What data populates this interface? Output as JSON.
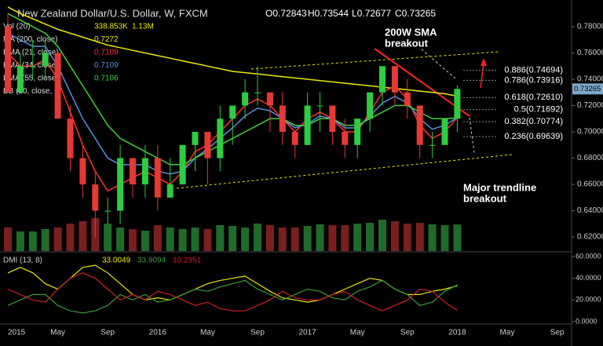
{
  "header": {
    "symbol": "New Zealand Dollar/U.S. Dollar, W, FXCM",
    "open": 0.72843,
    "high": 0.73544,
    "low": 0.72677,
    "close": 0.73265
  },
  "indicators": [
    {
      "name": "Vol (20)",
      "readings": [
        "338.853K",
        "1.13M"
      ],
      "color": "#e8e800"
    },
    {
      "name": "MA (200, close)",
      "readings": [
        "0.7272"
      ],
      "color": "#e8e800"
    },
    {
      "name": "EMA (21, close)",
      "readings": [
        "0.7109"
      ],
      "color": "#ff3030"
    },
    {
      "name": "EMA (34, close)",
      "readings": [
        "0.7109"
      ],
      "color": "#5a8fe0"
    },
    {
      "name": "EMA (55, close)",
      "readings": [
        "0.7106"
      ],
      "color": "#3ecf3e"
    },
    {
      "name": "BB (20, close, 2)",
      "readings": [],
      "color": "#cccccc"
    }
  ],
  "chart_data": {
    "type": "candlestick",
    "categories": [
      "2015",
      null,
      null,
      null,
      "May",
      null,
      null,
      null,
      "Sep",
      null,
      null,
      null,
      "2016",
      null,
      null,
      null,
      "May",
      null,
      null,
      null,
      "Sep",
      null,
      null,
      null,
      "2017",
      null,
      null,
      null,
      "May",
      null,
      null,
      null,
      "Sep",
      null,
      null,
      null,
      "2018",
      null,
      null,
      null,
      "May",
      null,
      null,
      null,
      "Sep"
    ],
    "open": [
      0.78,
      0.73,
      0.75,
      0.75,
      0.76,
      0.71,
      0.68,
      0.66,
      0.64,
      0.64,
      0.68,
      0.66,
      0.68,
      0.65,
      0.66,
      0.69,
      0.7,
      0.68,
      0.71,
      0.72,
      0.73,
      0.73,
      0.72,
      0.7,
      0.69,
      0.72,
      0.72,
      0.7,
      0.69,
      0.71,
      0.73,
      0.75,
      0.73,
      0.72,
      0.69,
      0.69,
      0.71,
      null,
      null,
      null,
      null,
      null,
      null,
      null,
      null
    ],
    "high": [
      0.79,
      0.76,
      0.77,
      0.77,
      0.76,
      0.72,
      0.69,
      0.67,
      0.65,
      0.69,
      0.68,
      0.69,
      0.69,
      0.68,
      0.69,
      0.7,
      0.7,
      0.72,
      0.72,
      0.74,
      0.75,
      0.73,
      0.73,
      0.7,
      0.73,
      0.73,
      0.72,
      0.71,
      0.71,
      0.73,
      0.75,
      0.75,
      0.74,
      0.72,
      0.7,
      0.71,
      0.73544,
      null,
      null,
      null,
      null,
      null,
      null,
      null,
      null
    ],
    "low": [
      0.73,
      0.73,
      0.74,
      0.74,
      0.71,
      0.67,
      0.65,
      0.62,
      0.63,
      0.63,
      0.65,
      0.65,
      0.64,
      0.65,
      0.66,
      0.67,
      0.66,
      0.67,
      0.69,
      0.71,
      0.72,
      0.7,
      0.69,
      0.68,
      0.69,
      0.7,
      0.69,
      0.68,
      0.68,
      0.7,
      0.72,
      0.72,
      0.71,
      0.68,
      0.68,
      0.69,
      0.7,
      null,
      null,
      null,
      null,
      null,
      null,
      null,
      null
    ],
    "close": [
      0.73,
      0.75,
      0.75,
      0.76,
      0.71,
      0.68,
      0.66,
      0.64,
      0.64,
      0.68,
      0.66,
      0.68,
      0.65,
      0.66,
      0.69,
      0.7,
      0.68,
      0.71,
      0.72,
      0.73,
      0.73,
      0.72,
      0.7,
      0.69,
      0.72,
      0.72,
      0.7,
      0.69,
      0.71,
      0.73,
      0.75,
      0.73,
      0.72,
      0.69,
      0.69,
      0.71,
      0.73265,
      null,
      null,
      null,
      null,
      null,
      null,
      null,
      null
    ],
    "up_color": "#2ecc40",
    "down_color": "#e53935",
    "ylim": [
      0.6093,
      0.8003
    ],
    "yticks": [
      {
        "value": 0.62,
        "label": "0.62000"
      },
      {
        "value": 0.64,
        "label": "0.64000"
      },
      {
        "value": 0.66,
        "label": "0.66000"
      },
      {
        "value": 0.68,
        "label": "0.68000"
      },
      {
        "value": 0.7,
        "label": "0.70000"
      },
      {
        "value": 0.72,
        "label": "0.72000"
      },
      {
        "value": 0.74,
        "label": "0.74000"
      },
      {
        "value": 0.76,
        "label": "0.76000"
      },
      {
        "value": 0.78,
        "label": "0.78000"
      }
    ],
    "last_price": {
      "value": 0.73265,
      "label": "0.73265"
    },
    "series": [
      {
        "name": "MA (200, close)",
        "color": "#e8e800",
        "values": [
          0.795,
          0.79,
          0.786,
          0.782,
          0.778,
          0.775,
          0.772,
          0.769,
          0.766,
          0.764,
          0.762,
          0.76,
          0.758,
          0.756,
          0.754,
          0.752,
          0.75,
          0.748,
          0.746,
          0.745,
          0.744,
          0.743,
          0.742,
          0.741,
          0.74,
          0.739,
          0.738,
          0.737,
          0.736,
          0.735,
          0.734,
          0.733,
          0.732,
          0.731,
          0.73,
          0.729,
          0.7272,
          null,
          null,
          null,
          null,
          null,
          null,
          null,
          null
        ]
      },
      {
        "name": "EMA (21, close)",
        "color": "#ff3030",
        "values": [
          0.76,
          0.75,
          0.75,
          0.755,
          0.74,
          0.715,
          0.69,
          0.67,
          0.655,
          0.66,
          0.665,
          0.67,
          0.665,
          0.66,
          0.67,
          0.685,
          0.69,
          0.7,
          0.71,
          0.72,
          0.725,
          0.72,
          0.71,
          0.7,
          0.71,
          0.715,
          0.71,
          0.7,
          0.7,
          0.715,
          0.73,
          0.735,
          0.725,
          0.705,
          0.695,
          0.7,
          0.7109,
          null,
          null,
          null,
          null,
          null,
          null,
          null,
          null
        ]
      },
      {
        "name": "EMA (34, close)",
        "color": "#5a8fe0",
        "values": [
          0.775,
          0.77,
          0.765,
          0.765,
          0.75,
          0.73,
          0.71,
          0.695,
          0.68,
          0.675,
          0.675,
          0.675,
          0.67,
          0.668,
          0.67,
          0.68,
          0.687,
          0.695,
          0.703,
          0.712,
          0.718,
          0.716,
          0.71,
          0.703,
          0.706,
          0.712,
          0.71,
          0.703,
          0.703,
          0.712,
          0.722,
          0.727,
          0.722,
          0.71,
          0.702,
          0.705,
          0.7109,
          null,
          null,
          null,
          null,
          null,
          null,
          null,
          null
        ]
      },
      {
        "name": "EMA (55, close)",
        "color": "#3ecf3e",
        "values": [
          0.79,
          0.785,
          0.78,
          0.775,
          0.765,
          0.75,
          0.735,
          0.72,
          0.705,
          0.695,
          0.69,
          0.685,
          0.68,
          0.675,
          0.675,
          0.68,
          0.685,
          0.69,
          0.695,
          0.7,
          0.705,
          0.71,
          0.71,
          0.705,
          0.705,
          0.71,
          0.71,
          0.705,
          0.705,
          0.71,
          0.715,
          0.72,
          0.72,
          0.715,
          0.71,
          0.71,
          0.7106,
          null,
          null,
          null,
          null,
          null,
          null,
          null,
          null
        ]
      }
    ],
    "volume": {
      "values": [
        300,
        250,
        250,
        280,
        300,
        350,
        380,
        420,
        350,
        300,
        280,
        260,
        330,
        300,
        280,
        300,
        280,
        330,
        320,
        300,
        350,
        330,
        300,
        300,
        320,
        340,
        330,
        330,
        350,
        360,
        400,
        380,
        350,
        360,
        340,
        330,
        338.853,
        null,
        null,
        null,
        null,
        null,
        null,
        null,
        null
      ],
      "ylim": [
        0,
        700
      ]
    },
    "fib": [
      {
        "level": 0.74694,
        "label": "0.886(0.74694)"
      },
      {
        "level": 0.73916,
        "label": "0.786(0.73916)"
      },
      {
        "level": 0.7261,
        "label": "0.618(0.72610)"
      },
      {
        "level": 0.71692,
        "label": "0.5(0.71692)"
      },
      {
        "level": 0.70774,
        "label": "0.382(0.70774)"
      },
      {
        "level": 0.69639,
        "label": "0.236(0.69639)"
      }
    ],
    "annotations": [
      {
        "lines": [
          "200W SMA",
          "breakout"
        ]
      },
      {
        "lines": [
          "Major trendline",
          "breakout"
        ]
      }
    ],
    "dmi": {
      "title": "DMI (13, 8)",
      "readings": [
        "33.0049",
        "33.9094",
        "10.2951"
      ],
      "ylim": [
        0,
        60
      ],
      "yticks": [
        {
          "value": 0,
          "label": "0.0000"
        },
        {
          "value": 20,
          "label": "20.0000"
        },
        {
          "value": 40,
          "label": "40.0000"
        },
        {
          "value": 60,
          "label": "60.0000"
        }
      ],
      "series": [
        {
          "name": "ADX",
          "color": "#e8e800",
          "values": [
            45,
            50,
            45,
            35,
            30,
            40,
            50,
            52,
            45,
            35,
            25,
            20,
            22,
            20,
            25,
            30,
            35,
            38,
            40,
            42,
            35,
            28,
            22,
            20,
            18,
            20,
            25,
            30,
            35,
            40,
            38,
            30,
            25,
            25,
            28,
            30,
            33.0049,
            null,
            null,
            null,
            null,
            null,
            null,
            null,
            null
          ]
        },
        {
          "name": "+DI",
          "color": "#3a9a3a",
          "values": [
            15,
            20,
            25,
            25,
            15,
            10,
            8,
            10,
            15,
            25,
            20,
            25,
            18,
            20,
            25,
            30,
            28,
            32,
            35,
            38,
            30,
            25,
            20,
            25,
            30,
            28,
            22,
            20,
            28,
            32,
            38,
            30,
            25,
            15,
            18,
            28,
            33.9094,
            null,
            null,
            null,
            null,
            null,
            null,
            null,
            null
          ]
        },
        {
          "name": "-DI",
          "color": "#d02020",
          "values": [
            30,
            25,
            20,
            18,
            30,
            40,
            45,
            40,
            30,
            20,
            25,
            20,
            28,
            25,
            20,
            15,
            18,
            12,
            10,
            10,
            15,
            20,
            28,
            22,
            20,
            20,
            25,
            28,
            20,
            15,
            10,
            15,
            20,
            30,
            28,
            18,
            10.2951,
            null,
            null,
            null,
            null,
            null,
            null,
            null,
            null
          ]
        }
      ]
    }
  }
}
